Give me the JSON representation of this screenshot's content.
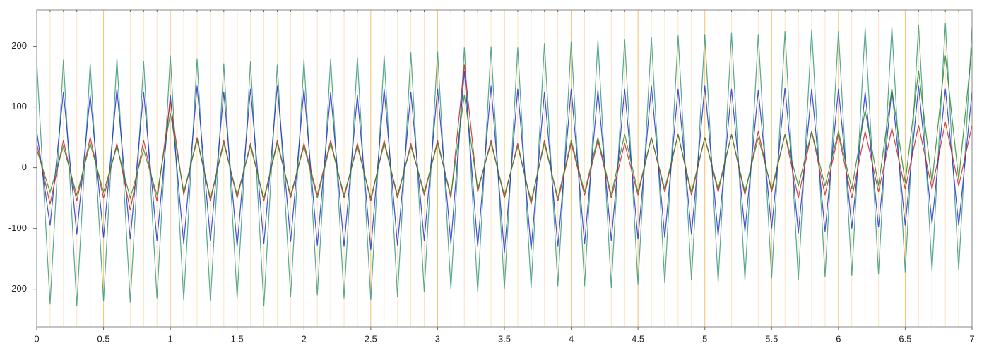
{
  "chart_data": {
    "type": "line",
    "x": [
      0,
      0.1,
      0.2,
      0.3,
      0.4,
      0.5,
      0.6,
      0.7,
      0.8,
      0.9,
      1,
      1.1,
      1.2,
      1.3,
      1.4,
      1.5,
      1.6,
      1.7,
      1.8,
      1.9,
      2,
      2.1,
      2.2,
      2.3,
      2.4,
      2.5,
      2.6,
      2.7,
      2.8,
      2.9,
      3,
      3.1,
      3.2,
      3.3,
      3.4,
      3.5,
      3.6,
      3.7,
      3.8,
      3.9,
      4,
      4.1,
      4.2,
      4.3,
      4.4,
      4.5,
      4.6,
      4.7,
      4.8,
      4.9,
      5,
      5.1,
      5.2,
      5.3,
      5.4,
      5.5,
      5.6,
      5.7,
      5.8,
      5.9,
      6,
      6.1,
      6.2,
      6.3,
      6.4,
      6.5,
      6.6,
      6.7,
      6.8,
      6.9,
      7
    ],
    "series": [
      {
        "color": "#3a9a7a",
        "values": [
          175,
          -225,
          178,
          -228,
          172,
          -220,
          180,
          -222,
          176,
          -215,
          185,
          -218,
          180,
          -220,
          172,
          -215,
          175,
          -228,
          170,
          -212,
          178,
          -210,
          180,
          -215,
          182,
          -218,
          185,
          -212,
          190,
          -205,
          192,
          -200,
          198,
          -205,
          200,
          -200,
          198,
          -198,
          205,
          -195,
          208,
          -195,
          210,
          -198,
          212,
          -192,
          215,
          -190,
          218,
          -185,
          220,
          -188,
          222,
          -185,
          220,
          -182,
          225,
          -185,
          228,
          -180,
          225,
          -178,
          230,
          -175,
          232,
          -172,
          235,
          -170,
          238,
          -168,
          232
        ]
      },
      {
        "color": "#2233cc",
        "values": [
          60,
          -95,
          125,
          -110,
          120,
          -115,
          130,
          -118,
          125,
          -120,
          120,
          -125,
          135,
          -120,
          125,
          -130,
          130,
          -125,
          135,
          -122,
          130,
          -128,
          125,
          -130,
          120,
          -135,
          130,
          -128,
          125,
          -120,
          130,
          -125,
          160,
          -130,
          135,
          -140,
          130,
          -135,
          125,
          -130,
          130,
          -125,
          128,
          -120,
          130,
          -118,
          135,
          -115,
          130,
          -110,
          135,
          -112,
          130,
          -105,
          128,
          -100,
          132,
          -108,
          130,
          -105,
          130,
          -100,
          125,
          -98,
          130,
          -95,
          135,
          -92,
          130,
          -95,
          125
        ]
      },
      {
        "color": "#cc2222",
        "values": [
          40,
          -60,
          45,
          -55,
          50,
          -50,
          40,
          -70,
          45,
          -55,
          110,
          -45,
          50,
          -55,
          45,
          -50,
          40,
          -55,
          45,
          -50,
          40,
          -45,
          45,
          -50,
          40,
          -55,
          45,
          -50,
          40,
          -45,
          45,
          -50,
          170,
          -40,
          45,
          -50,
          40,
          -60,
          45,
          -55,
          40,
          -45,
          45,
          -50,
          40,
          -45,
          50,
          -40,
          55,
          -45,
          50,
          -40,
          55,
          -45,
          60,
          -40,
          55,
          -50,
          60,
          -45,
          55,
          -50,
          60,
          -40,
          65,
          -35,
          70,
          -35,
          75,
          -30,
          70
        ]
      },
      {
        "color": "#2a8a2a",
        "values": [
          30,
          -40,
          35,
          -45,
          40,
          -40,
          35,
          -50,
          30,
          -45,
          90,
          -40,
          45,
          -50,
          40,
          -45,
          35,
          -50,
          40,
          -45,
          35,
          -50,
          40,
          -45,
          35,
          -50,
          40,
          -45,
          35,
          -40,
          40,
          -45,
          120,
          -35,
          40,
          -45,
          35,
          -55,
          40,
          -50,
          45,
          -40,
          50,
          -45,
          55,
          -40,
          50,
          -35,
          55,
          -40,
          50,
          -35,
          55,
          -40,
          50,
          -35,
          55,
          -30,
          60,
          -30,
          60,
          -35,
          95,
          -30,
          130,
          -25,
          160,
          -25,
          185,
          -20,
          200
        ]
      }
    ],
    "xlim": [
      0,
      7
    ],
    "ylim": [
      -262,
      260
    ],
    "xticks": [
      0,
      0.5,
      1,
      1.5,
      2,
      2.5,
      3,
      3.5,
      4,
      4.5,
      5,
      5.5,
      6,
      6.5,
      7
    ],
    "xminorticks": [
      0.1,
      0.2,
      0.3,
      0.4,
      0.6,
      0.7,
      0.8,
      0.9,
      1.1,
      1.2,
      1.3,
      1.4,
      1.6,
      1.7,
      1.8,
      1.9,
      2.1,
      2.2,
      2.3,
      2.4,
      2.6,
      2.7,
      2.8,
      2.9,
      3.1,
      3.2,
      3.3,
      3.4,
      3.6,
      3.7,
      3.8,
      3.9,
      4.1,
      4.2,
      4.3,
      4.4,
      4.6,
      4.7,
      4.8,
      4.9,
      5.1,
      5.2,
      5.3,
      5.4,
      5.6,
      5.7,
      5.8,
      5.9,
      6.1,
      6.2,
      6.3,
      6.4,
      6.6,
      6.7,
      6.8,
      6.9
    ],
    "yticks": [
      -200,
      -100,
      0,
      100,
      200
    ],
    "grid": true,
    "grid_color": "#f5b24a"
  }
}
